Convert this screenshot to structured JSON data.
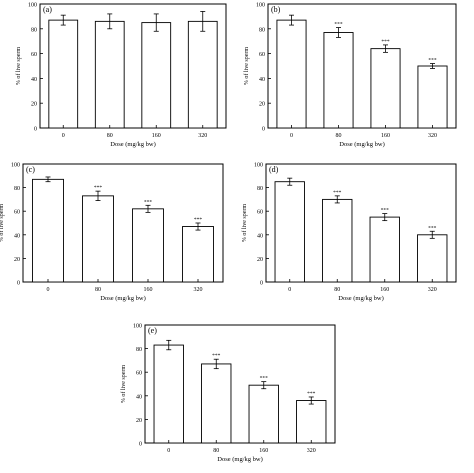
{
  "figure": {
    "panels": [
      {
        "label": "(a)",
        "ylabel": "% of live sperm",
        "xlabel": "Dose (mg/kg bw)",
        "yticks": [
          "0",
          "20",
          "40",
          "60",
          "80",
          "100"
        ],
        "categories": [
          "0",
          "80",
          "160",
          "320"
        ],
        "sig_marks": [
          "",
          "",
          "",
          ""
        ]
      },
      {
        "label": "(b)",
        "ylabel": "% of live sperm",
        "xlabel": "Dose (mg/kg bw)",
        "yticks": [
          "0",
          "20",
          "40",
          "60",
          "80",
          "100"
        ],
        "categories": [
          "0",
          "80",
          "160",
          "320"
        ],
        "sig_marks": [
          "",
          "***",
          "***",
          "***"
        ]
      },
      {
        "label": "(c)",
        "ylabel": "% of live sperm",
        "xlabel": "Dose (mg/kg bw)",
        "yticks": [
          "0",
          "20",
          "40",
          "60",
          "80",
          "100"
        ],
        "categories": [
          "0",
          "80",
          "160",
          "320"
        ],
        "sig_marks": [
          "",
          "***",
          "***",
          "***"
        ]
      },
      {
        "label": "(d)",
        "ylabel": "% of live sperm",
        "xlabel": "Dose (mg/kg bw)",
        "yticks": [
          "0",
          "20",
          "40",
          "60",
          "80",
          "100"
        ],
        "categories": [
          "0",
          "80",
          "160",
          "320"
        ],
        "sig_marks": [
          "",
          "***",
          "***",
          "***"
        ]
      },
      {
        "label": "(e)",
        "ylabel": "% of live sperm",
        "xlabel": "Dose (mg/kg bw)",
        "yticks": [
          "0",
          "20",
          "40",
          "60",
          "80",
          "100"
        ],
        "categories": [
          "0",
          "80",
          "160",
          "320"
        ],
        "sig_marks": [
          "",
          "***",
          "***",
          "***"
        ]
      }
    ]
  },
  "chart_data": [
    {
      "type": "bar",
      "title": "(a)",
      "xlabel": "Dose (mg/kg bw)",
      "ylabel": "% of live sperm",
      "ylim": [
        0,
        100
      ],
      "categories": [
        "0",
        "80",
        "160",
        "320"
      ],
      "values": [
        87,
        86,
        85,
        86
      ],
      "errors": [
        4,
        6,
        7,
        8
      ]
    },
    {
      "type": "bar",
      "title": "(b)",
      "xlabel": "Dose (mg/kg bw)",
      "ylabel": "% of live sperm",
      "ylim": [
        0,
        100
      ],
      "categories": [
        "0",
        "80",
        "160",
        "320"
      ],
      "values": [
        87,
        77,
        64,
        50
      ],
      "errors": [
        4,
        4,
        3,
        2
      ]
    },
    {
      "type": "bar",
      "title": "(c)",
      "xlabel": "Dose (mg/kg bw)",
      "ylabel": "% of live sperm",
      "ylim": [
        0,
        100
      ],
      "categories": [
        "0",
        "80",
        "160",
        "320"
      ],
      "values": [
        87,
        73,
        62,
        47
      ],
      "errors": [
        2,
        4,
        3,
        3
      ]
    },
    {
      "type": "bar",
      "title": "(d)",
      "xlabel": "Dose (mg/kg bw)",
      "ylabel": "% of live sperm",
      "ylim": [
        0,
        100
      ],
      "categories": [
        "0",
        "80",
        "160",
        "320"
      ],
      "values": [
        85,
        70,
        55,
        40
      ],
      "errors": [
        3,
        3,
        3,
        3
      ]
    },
    {
      "type": "bar",
      "title": "(e)",
      "xlabel": "Dose (mg/kg bw)",
      "ylabel": "% of live sperm",
      "ylim": [
        0,
        100
      ],
      "categories": [
        "0",
        "80",
        "160",
        "320"
      ],
      "values": [
        83,
        67,
        49,
        36
      ],
      "errors": [
        4,
        4,
        3,
        3
      ]
    }
  ]
}
